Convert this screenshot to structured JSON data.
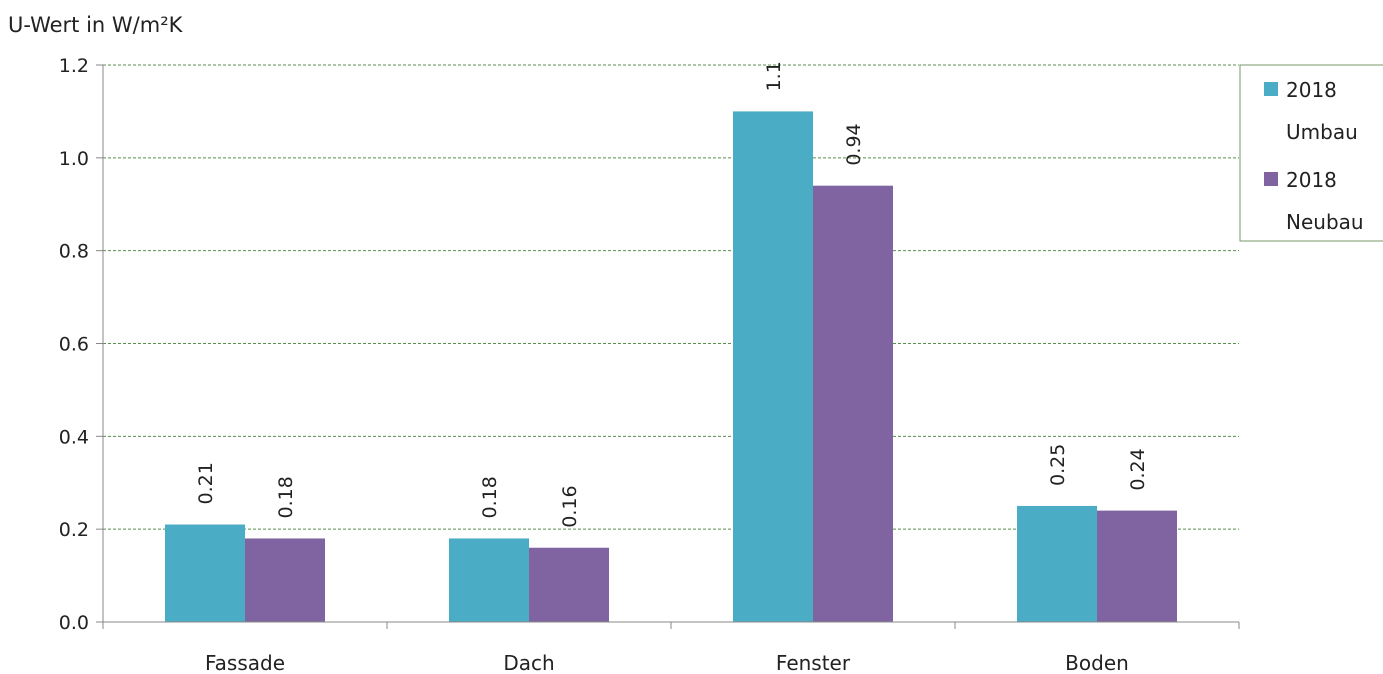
{
  "chart_data": {
    "type": "bar",
    "ylabel": "U-Wert in W/m²K",
    "categories": [
      "Fassade",
      "Dach",
      "Fenster",
      "Boden"
    ],
    "series": [
      {
        "name": [
          "2018",
          "Umbau"
        ],
        "color": "#4bacc6",
        "values": [
          0.21,
          0.18,
          1.1,
          0.25
        ],
        "labels": [
          "0.21",
          "0.18",
          "1.1",
          "0.25"
        ]
      },
      {
        "name": [
          "2018",
          "Neubau"
        ],
        "color": "#8064a2",
        "values": [
          0.18,
          0.16,
          0.94,
          0.24
        ],
        "labels": [
          "0.18",
          "0.16",
          "0.94",
          "0.24"
        ]
      }
    ],
    "ylim": [
      0,
      1.2
    ],
    "yticks": [
      "0.0",
      "0.2",
      "0.4",
      "0.6",
      "0.8",
      "1.0",
      "1.2"
    ],
    "grid": true,
    "legend_position": "right"
  }
}
